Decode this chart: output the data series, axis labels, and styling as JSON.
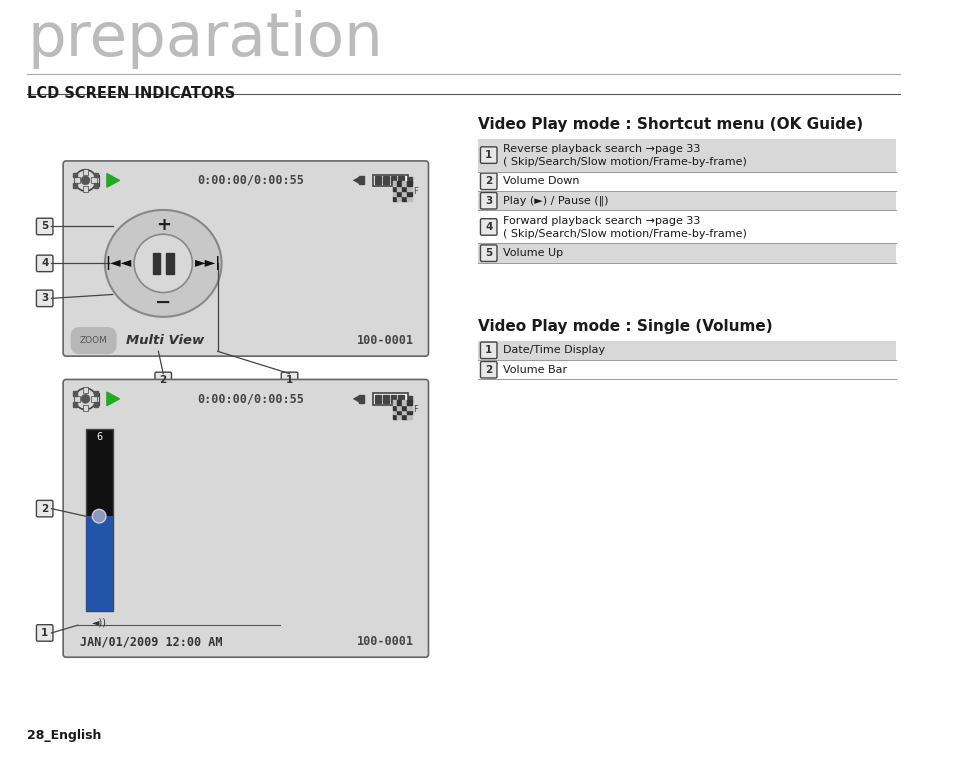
{
  "bg_color": "#ffffff",
  "title_text": "preparation",
  "section_title": "LCD SCREEN INDICATORS",
  "screen1_time": "0:00:00/0:00:55",
  "screen1_bottom_left": "ZOOM",
  "screen1_bottom_center": "Multi View",
  "screen1_bottom_right": "100-0001",
  "screen2_time": "0:00:00/0:00:55",
  "screen2_bottom_left": "JAN/01/2009 12:00 AM",
  "screen2_bottom_right": "100-0001",
  "section1_title": "Video Play mode : Shortcut menu (OK Guide)",
  "section1_items": [
    {
      "num": "1",
      "text": "Reverse playback search →page 33\n( Skip/Search/Slow motion/Frame-by-frame)",
      "two_line": true
    },
    {
      "num": "2",
      "text": "Volume Down",
      "two_line": false
    },
    {
      "num": "3",
      "text": "Play (►) / Pause (‖)",
      "two_line": false
    },
    {
      "num": "4",
      "text": "Forward playback search →page 33\n( Skip/Search/Slow motion/Frame-by-frame)",
      "two_line": true
    },
    {
      "num": "5",
      "text": "Volume Up",
      "two_line": false
    }
  ],
  "section2_title": "Video Play mode : Single (Volume)",
  "section2_items": [
    {
      "num": "1",
      "text": "Date/Time Display",
      "two_line": false
    },
    {
      "num": "2",
      "text": "Volume Bar",
      "two_line": false
    }
  ],
  "footer_text": "28_English",
  "screen_bg": "#d8d8d8",
  "vol_bar_bg": "#111111",
  "screen_border": "#555555",
  "label_bg": "#e8e8e8",
  "label_border": "#333333",
  "green_color": "#22aa22",
  "dark_color": "#1a1a1a",
  "gray_color": "#888888",
  "row_shade": "#d8d8d8",
  "row_white": "#ffffff",
  "line_color": "#999999"
}
